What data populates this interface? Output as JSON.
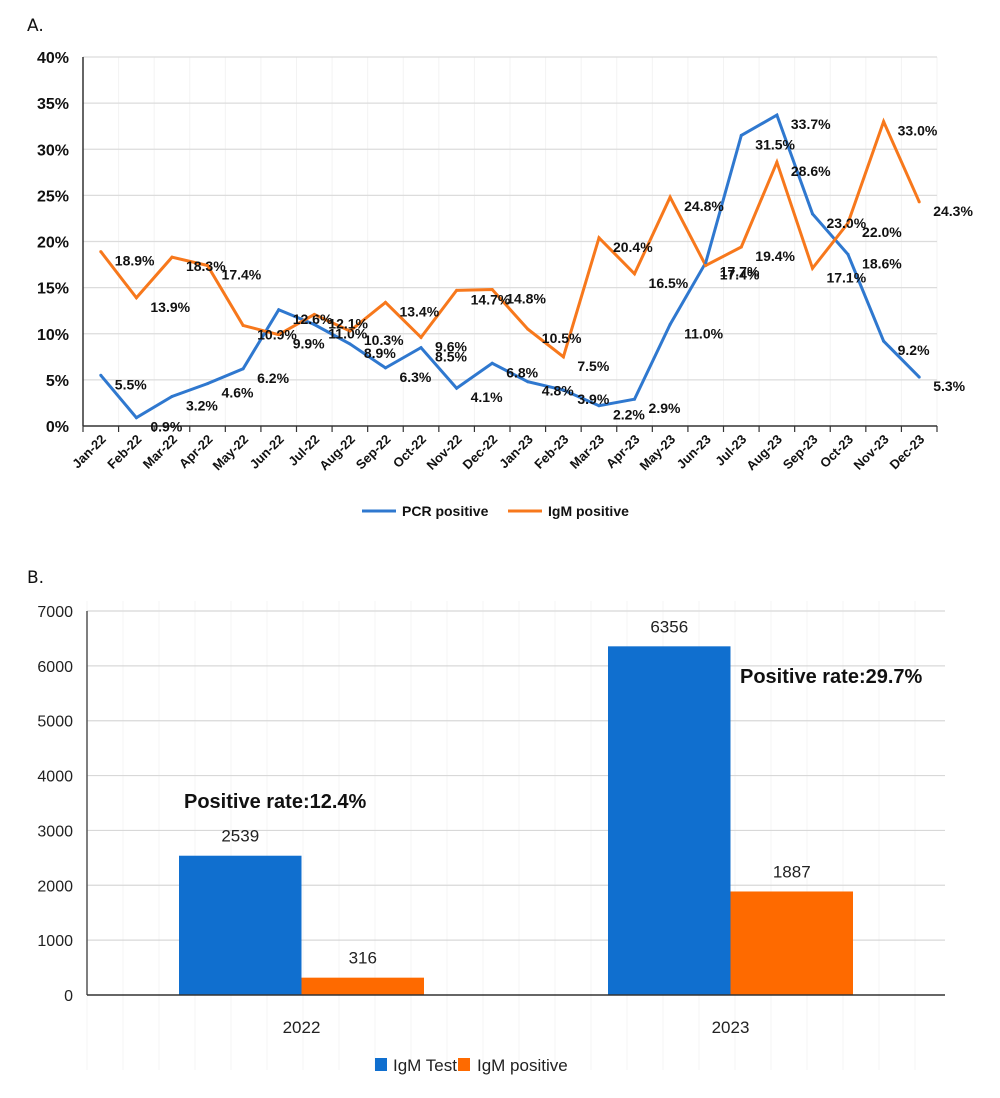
{
  "chart_data": [
    {
      "panel": "A.",
      "type": "line",
      "title": "",
      "xlabel": "",
      "ylabel": "",
      "categories": [
        "Jan-22",
        "Feb-22",
        "Mar-22",
        "Apr-22",
        "May-22",
        "Jun-22",
        "Jul-22",
        "Aug-22",
        "Sep-22",
        "Oct-22",
        "Nov-22",
        "Dec-22",
        "Jan-23",
        "Feb-23",
        "Mar-23",
        "Apr-23",
        "May-23",
        "Jun-23",
        "Jul-23",
        "Aug-23",
        "Sep-23",
        "Oct-23",
        "Nov-23",
        "Dec-23"
      ],
      "series": [
        {
          "name": "PCR positive",
          "color": "#2f78cf",
          "values": [
            5.5,
            0.9,
            3.2,
            4.6,
            6.2,
            12.6,
            11.0,
            8.9,
            6.3,
            8.5,
            4.1,
            6.8,
            4.8,
            3.9,
            2.2,
            2.9,
            11.0,
            17.7,
            31.5,
            33.7,
            23.0,
            18.6,
            9.2,
            5.3
          ]
        },
        {
          "name": "IgM positive",
          "color": "#f7781c",
          "values": [
            18.9,
            13.9,
            18.3,
            17.4,
            10.9,
            9.9,
            12.1,
            10.3,
            13.4,
            9.6,
            14.7,
            14.8,
            10.5,
            7.5,
            20.4,
            16.5,
            24.8,
            17.4,
            19.4,
            28.6,
            17.1,
            22.0,
            33.0,
            24.3
          ]
        }
      ],
      "value_suffix": "%",
      "yticks": [
        "0%",
        "5%",
        "10%",
        "15%",
        "20%",
        "25%",
        "30%",
        "35%",
        "40%"
      ],
      "ylim": [
        0,
        40
      ],
      "grid": true,
      "legend": "bottom-center"
    },
    {
      "panel": "B.",
      "type": "bar",
      "title": "",
      "xlabel": "",
      "ylabel": "",
      "categories": [
        "2022",
        "2023"
      ],
      "series": [
        {
          "name": "IgM Test",
          "color": "#106fcf",
          "values": [
            2539,
            6356
          ]
        },
        {
          "name": "IgM positive",
          "color": "#fe6a00",
          "values": [
            316,
            1887
          ]
        }
      ],
      "annotations": [
        "Positive rate:12.4%",
        "Positive rate:29.7%"
      ],
      "yticks": [
        "0",
        "1000",
        "2000",
        "3000",
        "4000",
        "5000",
        "6000",
        "7000"
      ],
      "ylim": [
        0,
        7000
      ],
      "grid": true,
      "legend": "bottom-center"
    }
  ]
}
